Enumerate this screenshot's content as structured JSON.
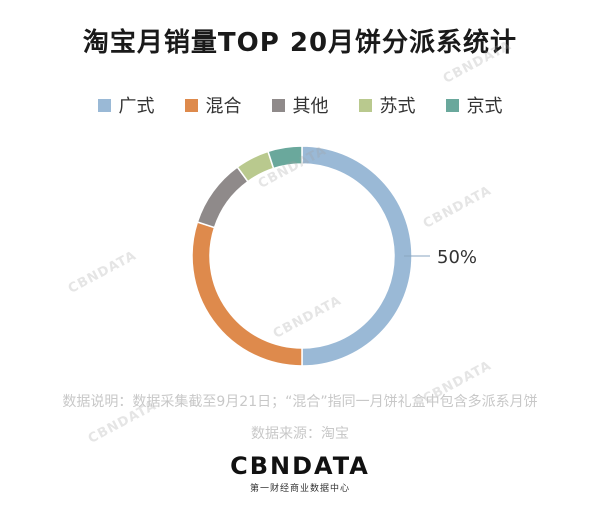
{
  "chart_data": {
    "type": "pie",
    "title": "淘宝月销量TOP 20月饼分派系统计",
    "categories": [
      "广式",
      "混合",
      "其他",
      "苏式",
      "京式"
    ],
    "values": [
      50,
      30,
      10,
      5,
      5
    ],
    "colors": [
      "#9ab9d6",
      "#de8a4c",
      "#8f8a8a",
      "#b9c98e",
      "#6aa89c"
    ],
    "data_labels": {
      "广式": "50%"
    },
    "legend_position": "top"
  },
  "footer": {
    "note": "数据说明：数据采集截至9月21日；“混合”指同一月饼礼盒中包含多派系月饼",
    "source": "数据来源：淘宝",
    "logo": "CBNDATA",
    "logo_sub": "第一财经商业数据中心"
  }
}
